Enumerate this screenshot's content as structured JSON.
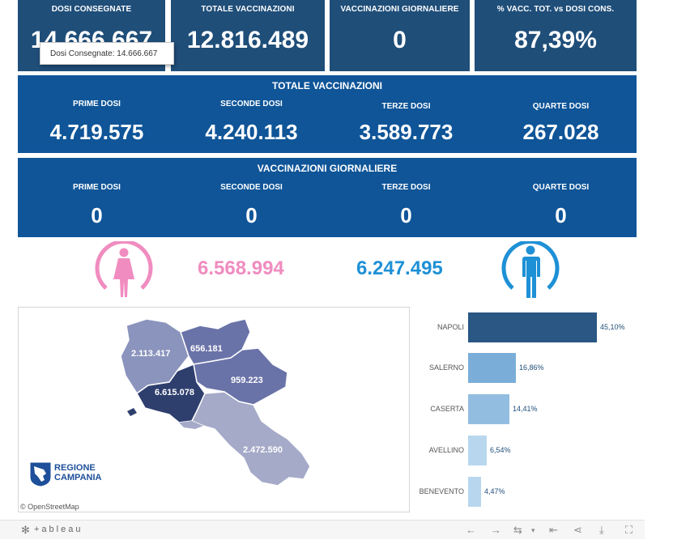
{
  "kpis": {
    "dosi_consegnate": {
      "label": "DOSI  CONSEGNATE",
      "value": "14.666.667"
    },
    "totale_vaccinazioni": {
      "label": "TOTALE VACCINAZIONI",
      "value": "12.816.489"
    },
    "vaccinazioni_giornaliere": {
      "label": "VACCINAZIONI GIORNALIERE",
      "value": "0"
    },
    "percentuale": {
      "label": "% VACC. TOT. vs DOSI CONS.",
      "value": "87,39%"
    }
  },
  "tooltip": {
    "label": "Dosi Consegnate:",
    "value": "14.666.667"
  },
  "totale_vaccinazioni": {
    "title": "TOTALE VACCINAZIONI",
    "cols": [
      {
        "label": "PRIME DOSI",
        "value": "4.719.575"
      },
      {
        "label": "SECONDE DOSI",
        "value": "4.240.113"
      },
      {
        "label": "TERZE DOSI",
        "value": "3.589.773"
      },
      {
        "label": "QUARTE DOSI",
        "value": "267.028"
      }
    ]
  },
  "vaccinazioni_giornaliere": {
    "title": "VACCINAZIONI GIORNALIERE",
    "cols": [
      {
        "label": "PRIME DOSI",
        "value": "0"
      },
      {
        "label": "SECONDE DOSI",
        "value": "0"
      },
      {
        "label": "TERZE DOSI",
        "value": "0"
      },
      {
        "label": "QUARTE DOSI",
        "value": "0"
      }
    ]
  },
  "gender": {
    "female": {
      "value": "6.568.994",
      "color": "#f08cc0",
      "icon": "female-icon"
    },
    "male": {
      "value": "6.247.495",
      "color": "#1e90d6",
      "icon": "male-icon"
    }
  },
  "map": {
    "provinces": {
      "caserta": "2.113.417",
      "benevento": "656.181",
      "avellino": "959.223",
      "napoli": "6.615.078",
      "salerno": "2.472.590"
    },
    "logo_line1": "REGIONE",
    "logo_line2": "CAMPANIA",
    "attribution": "© OpenStreetMap"
  },
  "bars": [
    {
      "name": "NAPOLI",
      "value": 45.1,
      "label": "45,10%",
      "color": "#2a5783"
    },
    {
      "name": "SALERNO",
      "value": 16.86,
      "label": "16,86%",
      "color": "#7aaed8"
    },
    {
      "name": "CASERTA",
      "value": 14.41,
      "label": "14,41%",
      "color": "#92bde0"
    },
    {
      "name": "AVELLINO",
      "value": 6.54,
      "label": "6,54%",
      "color": "#b8d7ef"
    },
    {
      "name": "BENEVENTO",
      "value": 4.47,
      "label": "4,47%",
      "color": "#b8d7ef"
    }
  ],
  "footer": {
    "brand": "+ableau",
    "icons": [
      "undo-icon",
      "redo-icon",
      "revert-icon",
      "reset-icon",
      "share-icon",
      "download-icon",
      "fullscreen-icon"
    ]
  }
}
